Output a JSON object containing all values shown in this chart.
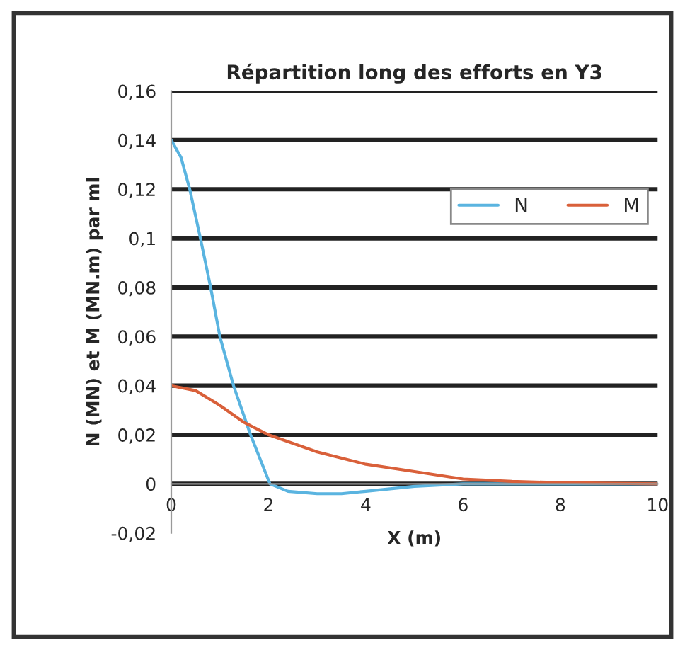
{
  "chart_data": {
    "type": "line",
    "title": "Répartition long des efforts en Y3",
    "xlabel": "X (m)",
    "ylabel": "N (MN) et M (MN.m) par ml",
    "series": [
      {
        "name": "N",
        "color": "#5ab4e0",
        "x": [
          0,
          0.2,
          0.38,
          0.6,
          0.81,
          1.0,
          1.28,
          1.63,
          2.03,
          2.4,
          3.0,
          3.5,
          4.0,
          5.0,
          6.0,
          8.0,
          10.0
        ],
        "values": [
          0.14,
          0.133,
          0.12,
          0.1,
          0.08,
          0.06,
          0.04,
          0.02,
          0.0,
          -0.003,
          -0.004,
          -0.004,
          -0.003,
          -0.001,
          0.0,
          0.0,
          0.0
        ]
      },
      {
        "name": "M",
        "color": "#d9603a",
        "x": [
          0,
          0.5,
          1.0,
          1.5,
          2.0,
          3.0,
          4.0,
          5.0,
          6.0,
          7.0,
          8.0,
          10.0
        ],
        "values": [
          0.04,
          0.038,
          0.032,
          0.025,
          0.02,
          0.013,
          0.008,
          0.005,
          0.002,
          0.001,
          0.0005,
          0.0
        ]
      }
    ],
    "xlim": [
      0,
      10
    ],
    "xticks": [
      0,
      2,
      4,
      6,
      8,
      10
    ],
    "ylim": [
      -0.02,
      0.16
    ],
    "yticks": [
      {
        "value": -0.02,
        "label": "-0,02"
      },
      0,
      {
        "value": 0.02,
        "label": "0,02"
      },
      {
        "value": 0.04,
        "label": "0,04"
      },
      {
        "value": 0.06,
        "label": "0,06"
      },
      {
        "value": 0.08,
        "label": "0,08"
      },
      {
        "value": 0.1,
        "label": "0,1"
      },
      {
        "value": 0.12,
        "label": "0,12"
      },
      {
        "value": 0.14,
        "label": "0,14"
      },
      {
        "value": 0.16,
        "label": "0,16"
      }
    ],
    "grid": "y",
    "legend": "top right",
    "marker": "none",
    "line_style": "solid"
  }
}
